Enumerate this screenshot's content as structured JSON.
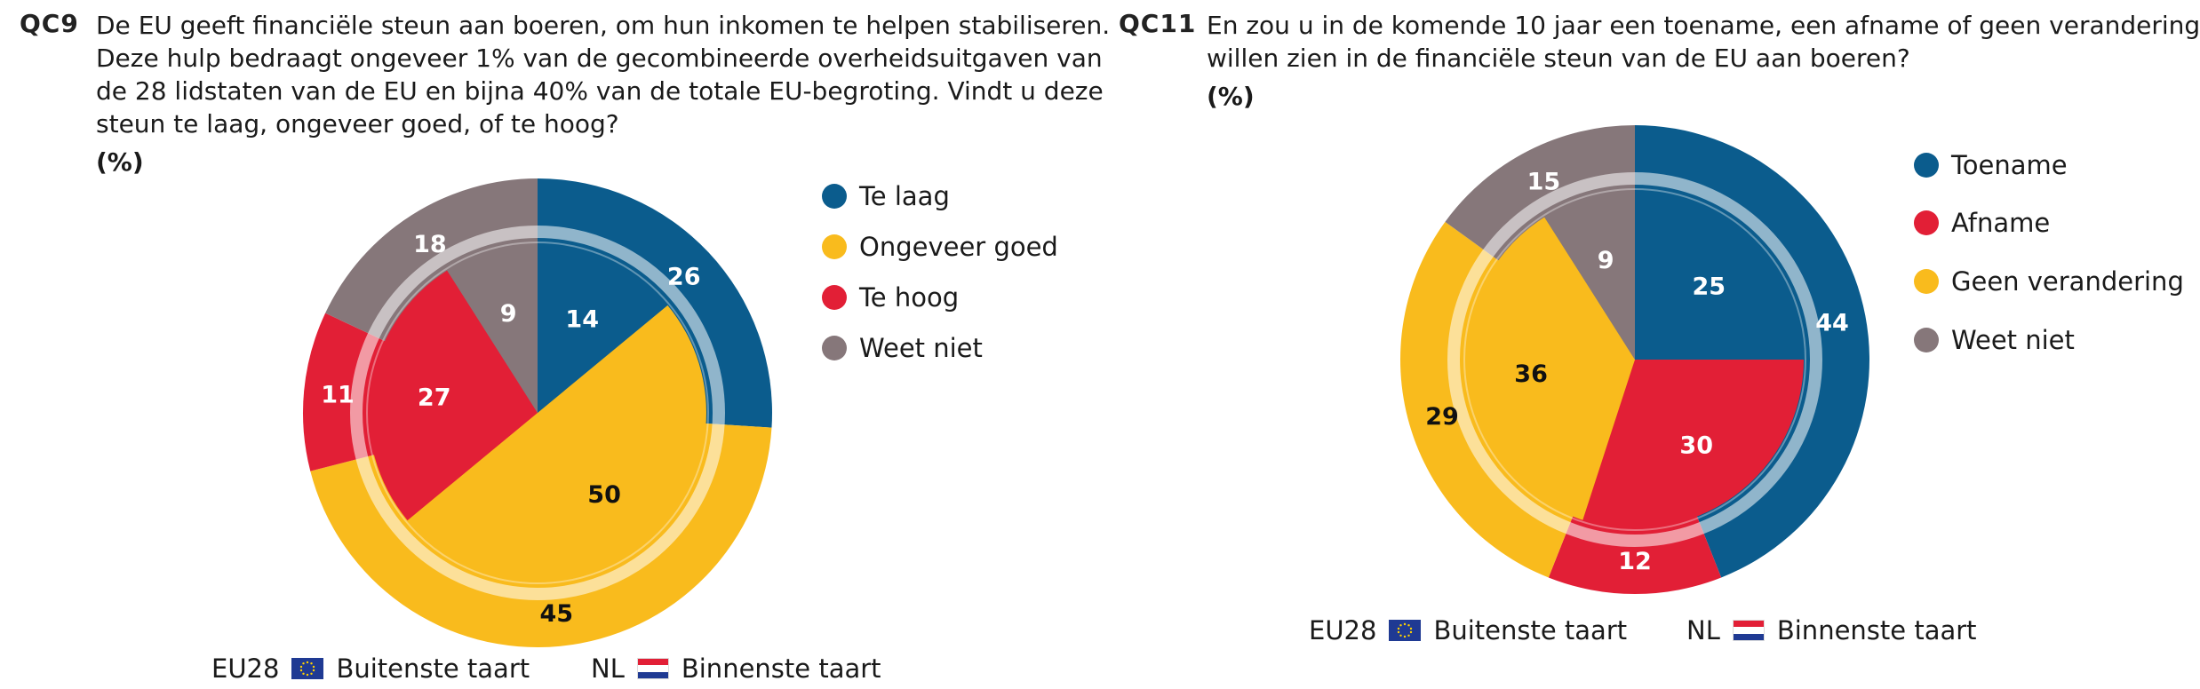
{
  "colors": {
    "te_laag": "#0b5c8d",
    "ongeveer_goed": "#f9bb1d",
    "te_hoog": "#e21f36",
    "weet_niet": "#86777a",
    "label_dark": "#111111",
    "label_light": "#ffffff"
  },
  "footer": {
    "eu_code": "EU28",
    "eu_pie": "Buitenste taart",
    "nl_code": "NL",
    "nl_pie": "Binnenste taart",
    "eu_flag_icon": "eu-flag-icon",
    "nl_flag_icon": "nl-flag-icon"
  },
  "chart_data": [
    {
      "type": "pie",
      "id": "QC9",
      "title_lines": [
        "De EU geeft financiële steun aan boeren, om hun inkomen te helpen stabiliseren.",
        "Deze hulp bedraagt ongeveer 1% van de gecombineerde overheidsuitgaven van",
        "de 28 lidstaten van de EU en bijna 40% van de totale EU-begroting. Vindt u deze",
        "steun te laag, ongeveer goed, of te hoog?"
      ],
      "unit": "(%)",
      "categories": [
        "Te laag",
        "Ongeveer goed",
        "Te hoog",
        "Weet niet"
      ],
      "series": [
        {
          "name": "EU28",
          "ring": "outer",
          "values": [
            26,
            45,
            11,
            18
          ]
        },
        {
          "name": "NL",
          "ring": "inner",
          "values": [
            14,
            50,
            27,
            9
          ]
        }
      ]
    },
    {
      "type": "pie",
      "id": "QC11",
      "title_lines": [
        "En zou u in de komende 10 jaar een toename, een afname of geen verandering",
        "willen zien in de financiële steun van de EU aan boeren?"
      ],
      "unit": "(%)",
      "categories": [
        "Toename",
        "Afname",
        "Geen verandering",
        "Weet niet"
      ],
      "series": [
        {
          "name": "EU28",
          "ring": "outer",
          "values": [
            44,
            12,
            29,
            15
          ]
        },
        {
          "name": "NL",
          "ring": "inner",
          "values": [
            25,
            30,
            36,
            9
          ]
        }
      ]
    }
  ]
}
